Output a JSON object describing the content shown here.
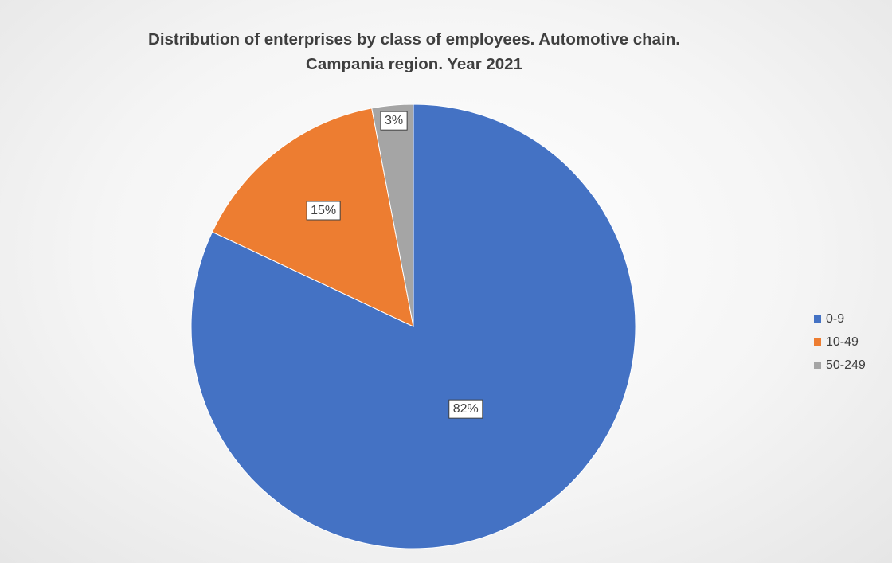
{
  "chart_data": {
    "type": "pie",
    "title": "Distribution of enterprises by class of employees. Automotive chain. Campania region. Year 2021",
    "title_lines": [
      "Distribution of enterprises by class of employees. Automotive chain.",
      "Campania region. Year 2021"
    ],
    "categories": [
      "0-9",
      "10-49",
      "50-249"
    ],
    "values": [
      82,
      15,
      3
    ],
    "labels": [
      "82%",
      "15%",
      "3%"
    ],
    "colors": [
      "#4472c4",
      "#ed7d31",
      "#a5a5a5"
    ],
    "legend_position": "right",
    "start_angle": "12 o'clock, clockwise"
  }
}
